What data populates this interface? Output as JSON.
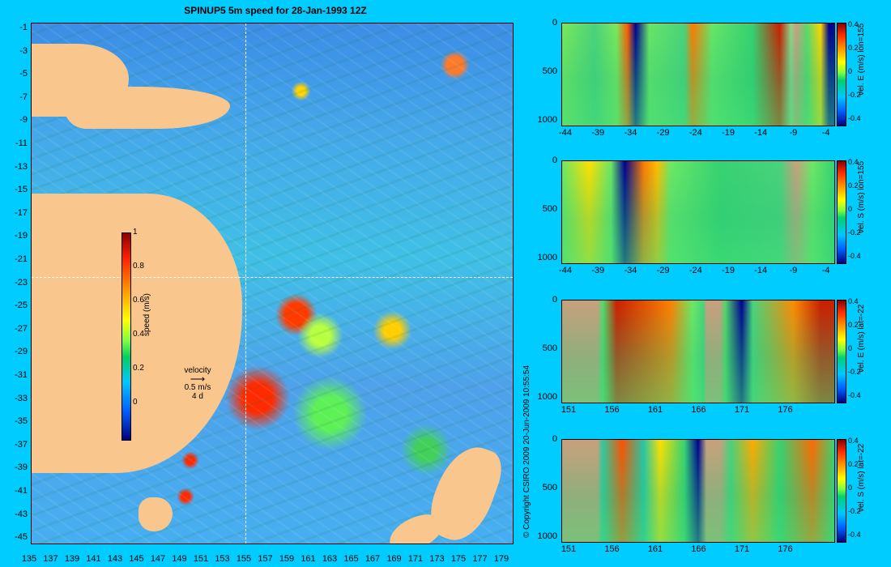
{
  "title": "SPINUP5 5m speed for 28-Jan-1993 12Z",
  "map": {
    "y_ticks": [
      "-1",
      "-3",
      "-5",
      "-7",
      "-9",
      "-11",
      "-13",
      "-15",
      "-17",
      "-19",
      "-21",
      "-23",
      "-25",
      "-27",
      "-29",
      "-31",
      "-33",
      "-35",
      "-37",
      "-39",
      "-41",
      "-43",
      "-45"
    ],
    "x_ticks": [
      "135",
      "137",
      "139",
      "141",
      "143",
      "145",
      "147",
      "149",
      "151",
      "153",
      "155",
      "157",
      "159",
      "161",
      "163",
      "165",
      "167",
      "169",
      "171",
      "173",
      "175",
      "177",
      "179"
    ],
    "colorbar": {
      "ticks": [
        "1",
        "0.8",
        "0.6",
        "0.4",
        "0.2",
        "0"
      ],
      "label": "speed (m/s)"
    },
    "velocity": {
      "title": "velocity",
      "scale": "0.5 m/s",
      "period": "4 d"
    },
    "section_lon": "155",
    "section_lat": "-22"
  },
  "copyright": "© Copyright CSIRO 2009   20-Jun-2009 10:55:54",
  "panels": [
    {
      "label": "vel. E (m/s) lon=155",
      "y_ticks": [
        "0",
        "500",
        "1000"
      ],
      "x_ticks": [
        "-44",
        "-39",
        "-34",
        "-29",
        "-24",
        "-19",
        "-14",
        "-9",
        "-4"
      ],
      "c_ticks": [
        "0.4",
        "0.2",
        "0",
        "-0.2",
        "-0.4"
      ]
    },
    {
      "label": "vel. S (m/s) lon=155",
      "y_ticks": [
        "0",
        "500",
        "1000"
      ],
      "x_ticks": [
        "-44",
        "-39",
        "-34",
        "-29",
        "-24",
        "-19",
        "-14",
        "-9",
        "-4"
      ],
      "c_ticks": [
        "0.4",
        "0.2",
        "0",
        "-0.2",
        "-0.4"
      ]
    },
    {
      "label": "vel. E (m/s) lat=-22",
      "y_ticks": [
        "0",
        "500",
        "1000"
      ],
      "x_ticks": [
        "151",
        "156",
        "161",
        "166",
        "171",
        "176"
      ],
      "c_ticks": [
        "0.4",
        "0.2",
        "0",
        "-0.2",
        "-0.4"
      ]
    },
    {
      "label": "vel. S (m/s) lat=-22",
      "y_ticks": [
        "0",
        "500",
        "1000"
      ],
      "x_ticks": [
        "151",
        "156",
        "161",
        "166",
        "171",
        "176"
      ],
      "c_ticks": [
        "0.4",
        "0.2",
        "0",
        "-0.2",
        "-0.4"
      ]
    }
  ]
}
